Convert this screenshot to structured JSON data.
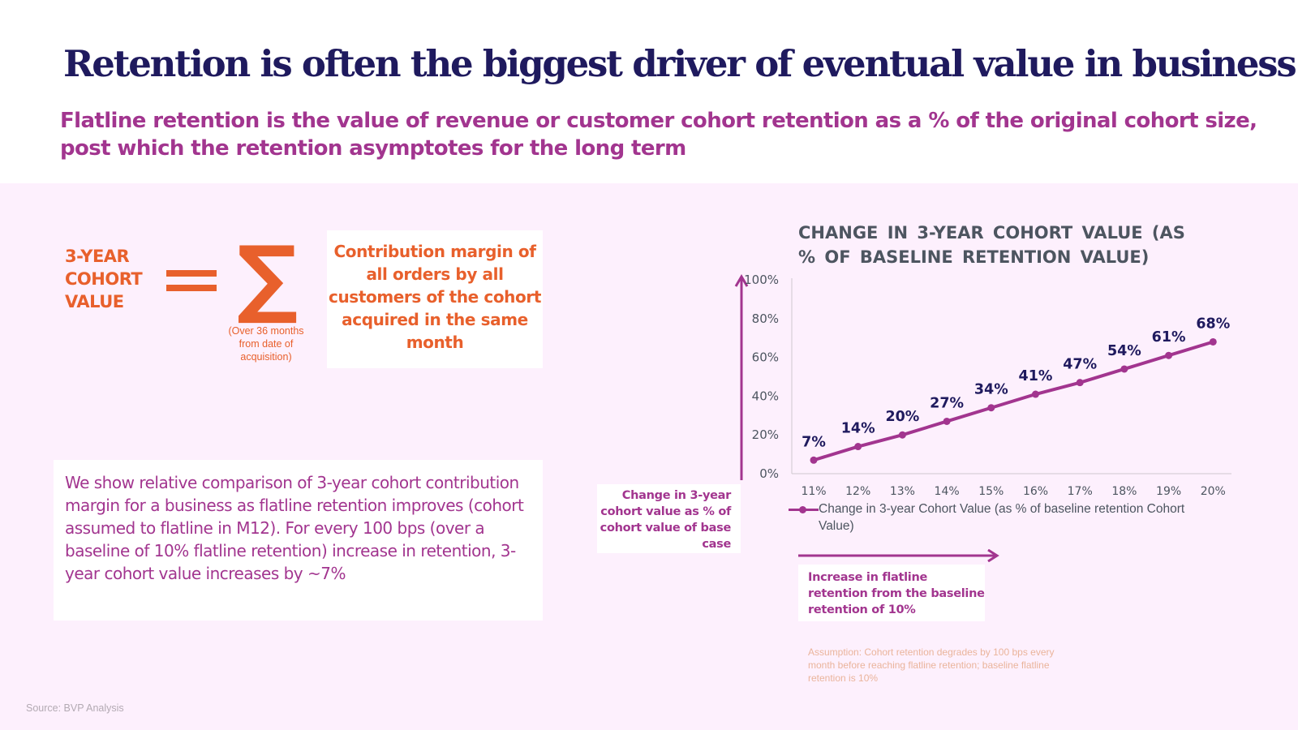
{
  "title": "Retention is often the biggest driver of eventual value in business",
  "subtitle": "Flatline retention is the value of revenue or customer cohort retention as a % of the original cohort size, post which the retention asymptotes for the long term",
  "formula": {
    "lhs": "3-YEAR COHORT VALUE",
    "lhs_lines": [
      "3-YEAR",
      "COHORT",
      "VALUE"
    ],
    "equals_icon": "equals-icon",
    "sigma_icon": "sigma-icon",
    "sigma_glyph": "∑",
    "sigma_note": "(Over 36 months from date of acquisition)",
    "definition": "Contribution margin of all orders by all customers of the cohort acquired in the same month"
  },
  "note": "We show relative comparison of 3-year cohort contribution margin for a business as flatline retention improves (cohort assumed to flatline in M12). For every 100 bps (over a baseline of 10% flatline retention) increase in retention, 3-year cohort value increases by ~7%",
  "y_axis_callout": "Change in 3-year cohort value as % of cohort value of base case",
  "x_axis_callout": "Increase in flatline retention from the baseline retention of 10%",
  "assumption": "Assumption: Cohort retention degrades by 100 bps every month before reaching flatline retention; baseline flatline retention is 10%",
  "source": "Source: BVP Analysis",
  "colors": {
    "title": "#1f1a5e",
    "accent_magenta": "#a2358f",
    "accent_orange": "#e8602c",
    "data_label": "#1f1a5e",
    "axis_text": "#4d5560",
    "background_panel": "#fdf0fd"
  },
  "chart_data": {
    "type": "line",
    "title": "CHANGE IN 3-YEAR COHORT VALUE (AS % OF BASELINE RETENTION VALUE)",
    "xlabel": "",
    "ylabel": "",
    "categories": [
      "11%",
      "12%",
      "13%",
      "14%",
      "15%",
      "16%",
      "17%",
      "18%",
      "19%",
      "20%"
    ],
    "series": [
      {
        "name": "Change in 3-year Cohort Value (as % of baseline retention Cohort Value)",
        "values": [
          7,
          14,
          20,
          27,
          34,
          41,
          47,
          54,
          61,
          68
        ],
        "labels": [
          "7%",
          "14%",
          "20%",
          "27%",
          "34%",
          "41%",
          "47%",
          "54%",
          "61%",
          "68%"
        ]
      }
    ],
    "ylim": [
      0,
      100
    ],
    "yticks": [
      0,
      20,
      40,
      60,
      80,
      100
    ],
    "ytick_labels": [
      "0%",
      "20%",
      "40%",
      "60%",
      "80%",
      "100%"
    ],
    "grid": false,
    "legend": "bottom"
  }
}
